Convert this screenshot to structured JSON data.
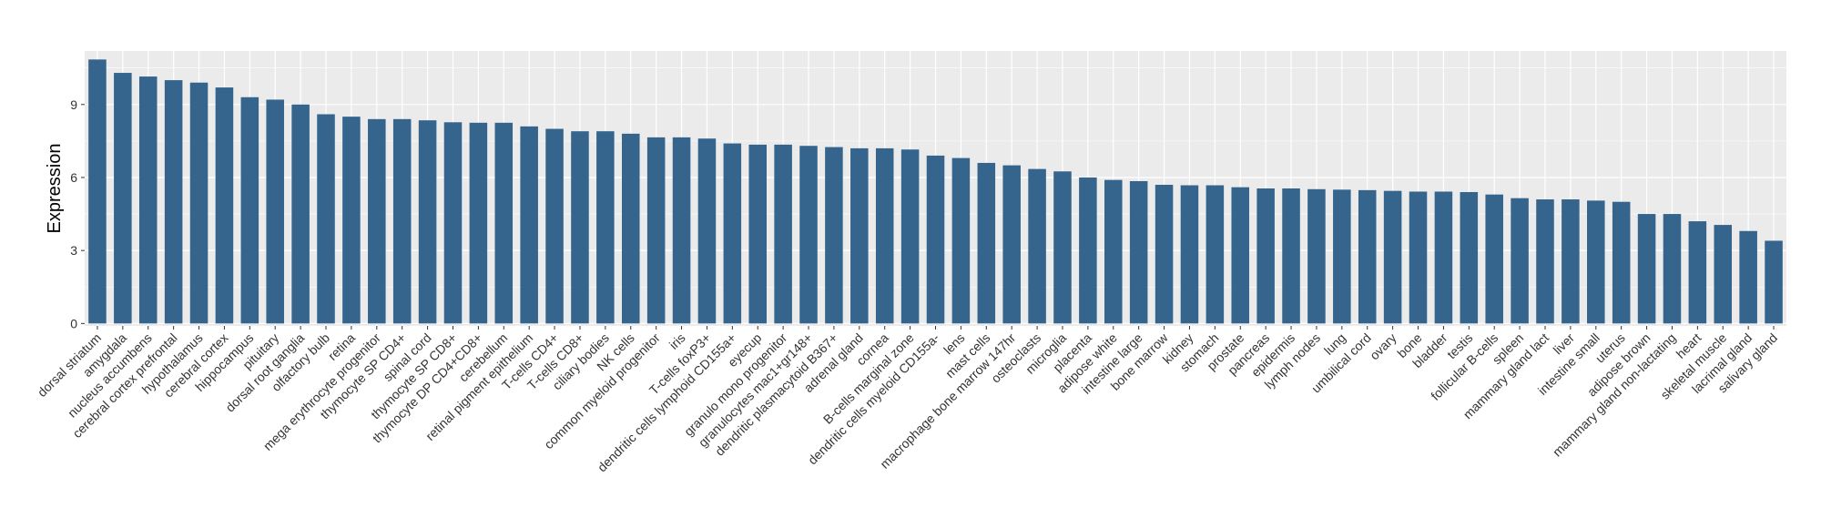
{
  "chart_data": {
    "type": "bar",
    "title": "",
    "xlabel": "",
    "ylabel": "Expression",
    "ylim": [
      -0.1,
      11.2
    ],
    "yticks": [
      0,
      3,
      6,
      9
    ],
    "grid": true,
    "legend": "none",
    "colors": {
      "bar": "#35648C",
      "panel": "#EBEBEB",
      "grid": "#FFFFFF",
      "tick": "#333333"
    },
    "categories": [
      "dorsal striatum",
      "amygdala",
      "nucleus accumbens",
      "cerebral cortex prefrontal",
      "hypothalamus",
      "cerebral cortex",
      "hippocampus",
      "pituitary",
      "dorsal root ganglia",
      "olfactory bulb",
      "retina",
      "mega erythrocyte progenitor",
      "thymocyte SP CD4+",
      "spinal cord",
      "thymocyte SP CD8+",
      "thymocyte DP CD4+CD8+",
      "cerebellum",
      "retinal pigment epithelium",
      "T-cells CD4+",
      "T-cells CD8+",
      "ciliary bodies",
      "NK cells",
      "common myeloid progenitor",
      "iris",
      "T-cells foxP3+",
      "dendritic cells lymphoid CD155a+",
      "eyecup",
      "granulo mono progenitor",
      "granulocytes mac1+gr148+",
      "dendritic plasmacytoid B367+",
      "adrenal gland",
      "cornea",
      "B-cells marginal zone",
      "dendritic cells myeloid CD155a-",
      "lens",
      "mast cells",
      "macrophage bone marrow 147hr",
      "osteoclasts",
      "microglia",
      "placenta",
      "adipose white",
      "intestine large",
      "bone marrow",
      "kidney",
      "stomach",
      "prostate",
      "pancreas",
      "epidermis",
      "lymph nodes",
      "lung",
      "umbilical cord",
      "ovary",
      "bone",
      "bladder",
      "testis",
      "follicular B-cells",
      "spleen",
      "mammary gland lact",
      "liver",
      "intestine small",
      "uterus",
      "adipose brown",
      "mammary gland non-lactating",
      "heart",
      "skeletal muscle",
      "lacrimal gland",
      "salivary gland"
    ],
    "values": [
      10.85,
      10.3,
      10.15,
      10.0,
      9.9,
      9.7,
      9.3,
      9.2,
      9.0,
      8.6,
      8.5,
      8.4,
      8.4,
      8.35,
      8.27,
      8.25,
      8.25,
      8.1,
      8.0,
      7.9,
      7.9,
      7.8,
      7.65,
      7.65,
      7.6,
      7.4,
      7.35,
      7.35,
      7.3,
      7.25,
      7.2,
      7.2,
      7.15,
      6.9,
      6.8,
      6.6,
      6.5,
      6.35,
      6.25,
      6.0,
      5.9,
      5.85,
      5.7,
      5.68,
      5.68,
      5.6,
      5.55,
      5.55,
      5.52,
      5.5,
      5.48,
      5.45,
      5.42,
      5.42,
      5.4,
      5.3,
      5.15,
      5.1,
      5.1,
      5.05,
      5.0,
      4.5,
      4.5,
      4.2,
      4.05,
      3.8,
      3.4
    ]
  }
}
